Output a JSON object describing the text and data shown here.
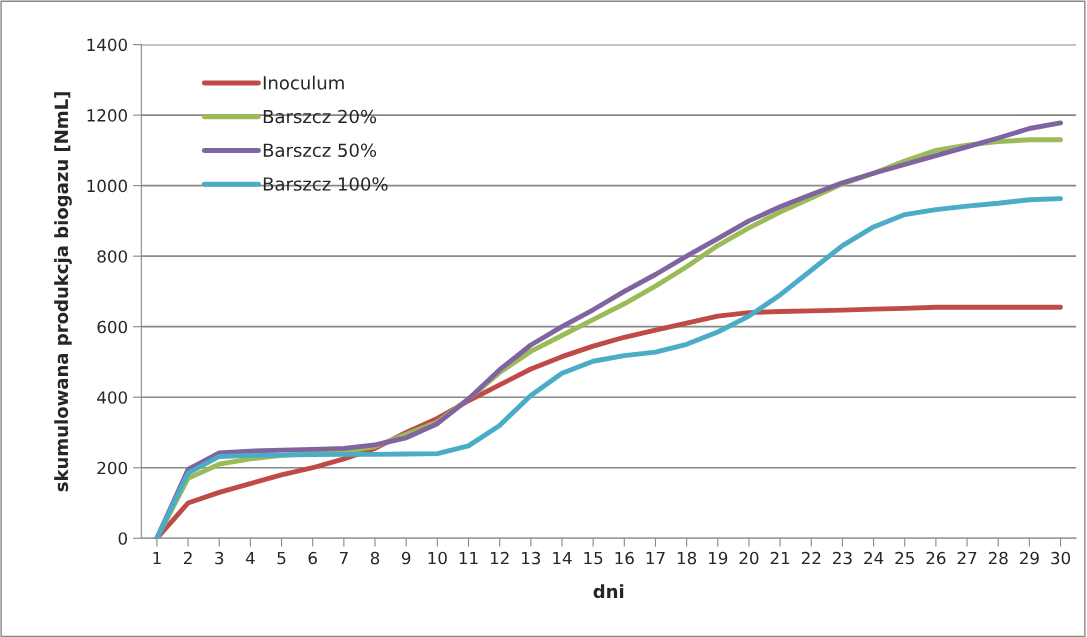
{
  "chart_data": {
    "type": "line",
    "xlabel": "dni",
    "ylabel": "skumulowana produkcja biogazu [NmL]",
    "categories": [
      "1",
      "2",
      "3",
      "4",
      "5",
      "6",
      "7",
      "8",
      "9",
      "10",
      "11",
      "12",
      "13",
      "14",
      "15",
      "16",
      "17",
      "18",
      "19",
      "20",
      "21",
      "22",
      "23",
      "24",
      "25",
      "26",
      "27",
      "28",
      "29",
      "30"
    ],
    "series": [
      {
        "name": "Inoculum",
        "color": "#be4b48",
        "values": [
          0,
          100,
          130,
          155,
          180,
          200,
          225,
          255,
          300,
          340,
          390,
          435,
          480,
          515,
          545,
          570,
          590,
          610,
          630,
          640,
          643,
          645,
          647,
          650,
          652,
          655,
          655,
          655,
          655,
          655
        ]
      },
      {
        "name": "Barszcz 20%",
        "color": "#9bbb59",
        "values": [
          0,
          170,
          210,
          225,
          235,
          240,
          245,
          260,
          295,
          330,
          395,
          470,
          530,
          575,
          620,
          665,
          715,
          770,
          830,
          880,
          925,
          965,
          1005,
          1035,
          1070,
          1100,
          1115,
          1125,
          1130,
          1130
        ]
      },
      {
        "name": "Barszcz 50%",
        "color": "#8064a2",
        "values": [
          0,
          195,
          242,
          247,
          250,
          252,
          255,
          265,
          285,
          325,
          395,
          478,
          548,
          600,
          648,
          700,
          748,
          800,
          850,
          900,
          940,
          975,
          1008,
          1035,
          1060,
          1085,
          1110,
          1135,
          1162,
          1178
        ]
      },
      {
        "name": "Barszcz 100%",
        "color": "#4bacc6",
        "values": [
          0,
          185,
          232,
          235,
          236,
          237,
          238,
          238,
          239,
          240,
          262,
          320,
          405,
          468,
          502,
          518,
          528,
          550,
          585,
          630,
          690,
          760,
          830,
          883,
          918,
          932,
          942,
          950,
          960,
          963
        ]
      }
    ],
    "ylim": [
      0,
      1400
    ],
    "yticks": [
      0,
      200,
      400,
      600,
      800,
      1000,
      1200,
      1400
    ],
    "grid": "y",
    "legend": "top left",
    "marker": "none",
    "line_style": "solid"
  }
}
